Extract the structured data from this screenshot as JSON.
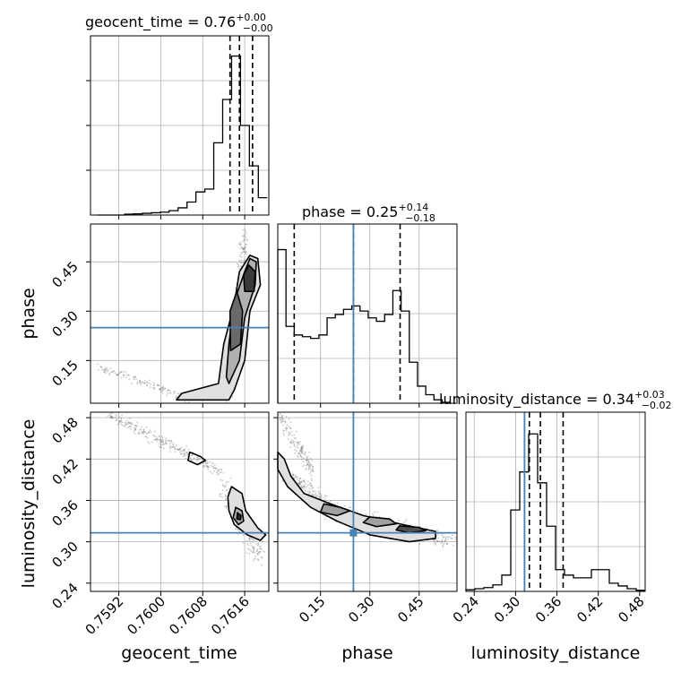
{
  "chart_data": {
    "type": "corner",
    "parameters": [
      "geocent_time",
      "phase",
      "luminosity_distance"
    ],
    "titles": [
      {
        "param": "geocent_time",
        "label": "geocent_time = 0.76",
        "value": 0.76,
        "upper": "+0.00",
        "lower": "−0.00"
      },
      {
        "param": "phase",
        "label": "phase = 0.25",
        "value": 0.25,
        "upper": "+0.14",
        "lower": "−0.18"
      },
      {
        "param": "luminosity_distance",
        "label": "luminosity_distance = 0.34",
        "value": 0.34,
        "upper": "+0.03",
        "lower": "−0.02"
      }
    ],
    "axes": {
      "geocent_time": {
        "range": [
          0.75866,
          0.76206
        ],
        "ticks": [
          0.7592,
          0.76,
          0.7608,
          0.7616
        ],
        "tick_labels": [
          "0.7592",
          "0.7600",
          "0.7608",
          "0.7616"
        ]
      },
      "phase": {
        "range": [
          0.02,
          0.565
        ],
        "ticks": [
          0.15,
          0.3,
          0.45
        ],
        "tick_labels": [
          "0.15",
          "0.30",
          "0.45"
        ]
      },
      "luminosity_distance": {
        "range": [
          0.228,
          0.488
        ],
        "ticks": [
          0.24,
          0.3,
          0.36,
          0.42,
          0.48
        ],
        "tick_labels": [
          "0.24",
          "0.30",
          "0.36",
          "0.42",
          "0.48"
        ]
      }
    },
    "truths": {
      "phase": 0.25,
      "luminosity_distance": 0.313
    },
    "quantiles": {
      "geocent_time": [
        0.76132,
        0.7615,
        0.76175
      ],
      "phase": [
        0.07,
        0.25,
        0.392
      ],
      "luminosity_distance": [
        0.32,
        0.336,
        0.369
      ]
    },
    "histograms": {
      "geocent_time": {
        "edges": [
          0.7588,
          0.75897,
          0.75914,
          0.75931,
          0.75948,
          0.75965,
          0.75982,
          0.75999,
          0.76016,
          0.76033,
          0.7605,
          0.76067,
          0.76084,
          0.76101,
          0.76118,
          0.76135,
          0.76152,
          0.76169,
          0.76186,
          0.76203
        ],
        "counts": [
          0,
          0,
          0,
          0.3,
          0.4,
          0.6,
          0.8,
          1.0,
          1.5,
          2.5,
          4.5,
          8.0,
          9.0,
          25.0,
          40.0,
          55.0,
          31.0,
          17.0,
          6.0
        ],
        "ymax": 62
      },
      "phase": {
        "edges": [
          0.02,
          0.045,
          0.07,
          0.095,
          0.12,
          0.145,
          0.17,
          0.195,
          0.22,
          0.245,
          0.27,
          0.295,
          0.32,
          0.345,
          0.37,
          0.395,
          0.42,
          0.445,
          0.47,
          0.495,
          0.52,
          0.545
        ],
        "counts": [
          9.0,
          4.5,
          4.0,
          3.9,
          3.8,
          4.0,
          5.0,
          5.2,
          5.5,
          5.7,
          5.4,
          5.0,
          4.8,
          5.2,
          6.6,
          5.4,
          2.4,
          1.0,
          0.5,
          0.2,
          0.05
        ],
        "ymax": 10.5
      },
      "luminosity_distance": {
        "edges": [
          0.228,
          0.241,
          0.254,
          0.267,
          0.28,
          0.293,
          0.306,
          0.319,
          0.332,
          0.345,
          0.358,
          0.371,
          0.384,
          0.397,
          0.41,
          0.423,
          0.436,
          0.449,
          0.462,
          0.475,
          0.488
        ],
        "counts": [
          0.3,
          0.5,
          0.7,
          1.2,
          3.0,
          15.0,
          22.0,
          29.0,
          20.0,
          12.0,
          4.0,
          3.0,
          2.5,
          2.5,
          4.0,
          4.0,
          1.5,
          1.0,
          0.5,
          0.2
        ],
        "ymax": 33
      }
    },
    "colors": {
      "truth": "#4682b4",
      "hist": "#000000",
      "quantile": "#000000",
      "grid": "#b0b0b0",
      "points": "#666666"
    }
  }
}
